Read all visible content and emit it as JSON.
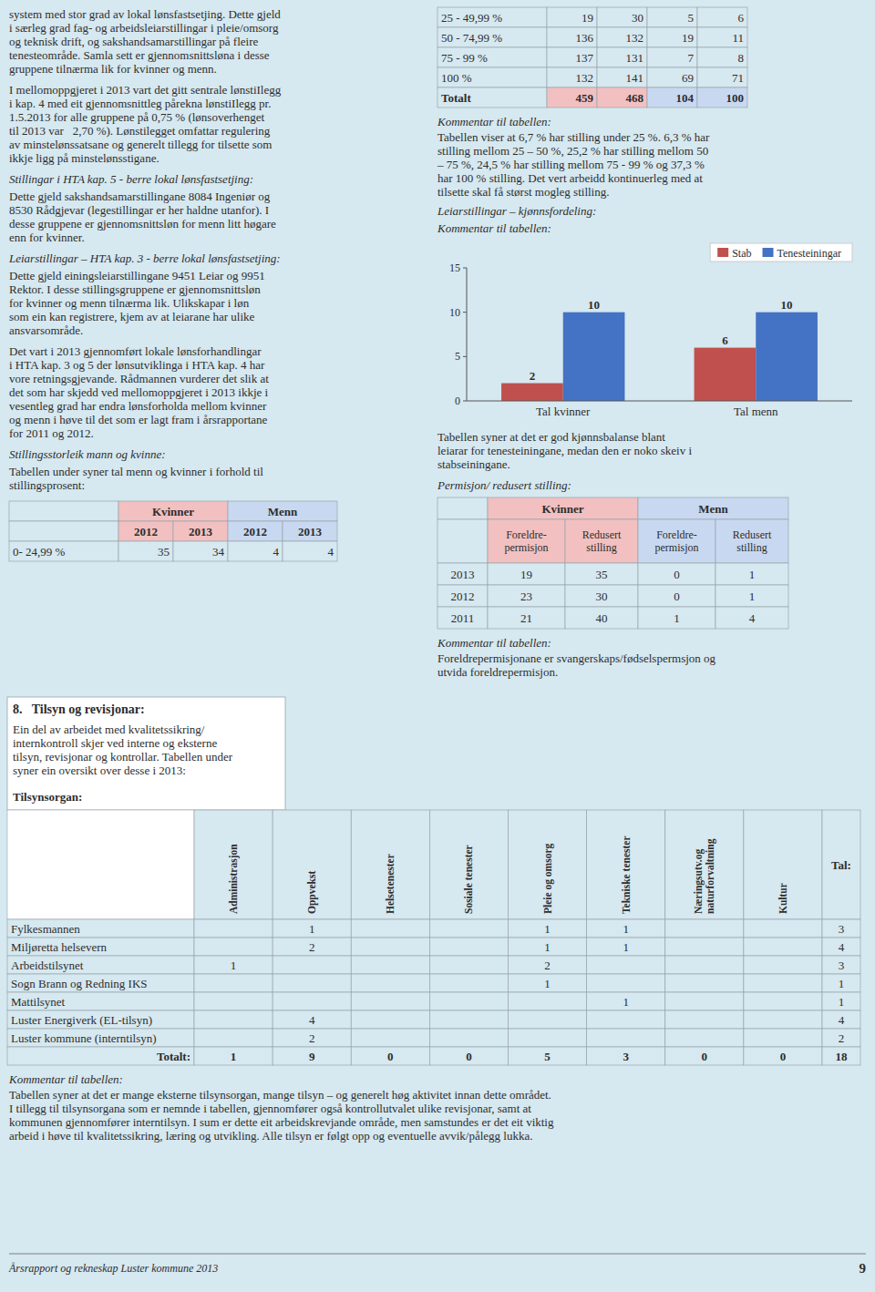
{
  "chart_data": {
    "type": "bar",
    "categories": [
      "Tal kvinner",
      "Tal menn"
    ],
    "series": [
      {
        "name": "Stab",
        "color": "#c0504d",
        "values": [
          2,
          6
        ]
      },
      {
        "name": "Tenesteiningar",
        "color": "#4472c4",
        "values": [
          10,
          10
        ]
      }
    ],
    "ylim": [
      0,
      15
    ],
    "yticks": [
      0,
      5,
      10,
      15
    ],
    "grid": false,
    "legend": "upper right",
    "data_labels": true
  },
  "page": {
    "background": "#d6e8f0",
    "group_colors": [
      "#f2c0c0",
      "#c8d8f0"
    ],
    "left_paragraphs": [
      {
        "text": "system med stor grad av lokal lønsfastsetjing. Dette gjeld\ni særleg grad fag- og arbeidsleiarstillingar i pleie/omsorg\nog teknisk drift, og sakshandsamarstillingar på fleire\ntenesteområde. Samla sett er gjennomsnittsløna i desse\ngruppene tilnærma lik for kvinner og menn.",
        "italic": false
      },
      {
        "text": "I mellomoppgjeret i 2013 vart det gitt sentrale lønstiIlegg\ni kap. 4 med eit gjennomsnittleg pårekna lønstiIlegg pr.\n1.5.2013 for alle gruppene på 0,75 % (lønsoverhenget\ntil 2013 var   2,70 %). Lønstilegget omfattar regulering\nav minstelønssatsane og generelt tillegg for tilsette som\nikkje ligg på minstelønsstigane.",
        "italic": false
      },
      {
        "text": "Stillingar i HTA kap. 5 - berre lokal lønsfastsetjing:",
        "italic": true
      },
      {
        "text": "Dette gjeld sakshandsamarstillingane 8084 Ingeniør og\n8530 Rådgjevar (legestillingar er her haldne utanfor). I\ndesse gruppene er gjennomsnittsløn for menn litt høgare\nenn for kvinner.",
        "italic": false
      },
      {
        "text": "Leiarstillingar – HTA kap. 3 - berre lokal lønsfastsetjing:",
        "italic": true
      },
      {
        "text": "Dette gjeld einingsleiarstillingane 9451 Leiar og 9951\nRektor. I desse stillingsgruppene er gjennomsnittsløn\nfor kvinner og menn tilnærma lik. Ulikskapar i løn\nsom ein kan registrere, kjem av at leiarane har ulike\nansvarsområde.",
        "italic": false
      },
      {
        "text": "Det vart i 2013 gjennomført lokale lønsforhandlingar\ni HTA kap. 3 og 5 der lønsutviklinga i HTA kap. 4 har\nvore retningsgjevande. Rådmannen vurderer det slik at\ndet som har skjedd ved mellomoppgjeret i 2013 ikkje i\nvesentleg grad har endra lønsforholda mellom kvinner\nog menn i høve til det som er lagt fram i årsrapportane\nfor 2011 og 2012.",
        "italic": false
      },
      {
        "text": "Stillingsstorleik mann og kvinne:",
        "italic": true
      },
      {
        "text": "Tabellen under syner tal menn og kvinner i forhold til\nstillingsprosent:",
        "italic": false
      }
    ],
    "headcount_table": {
      "group_headers": [
        "Kvinner",
        "Menn"
      ],
      "year_headers": [
        2012,
        2013,
        2012,
        2013
      ],
      "rows": [
        [
          "0- 24,99 %",
          35,
          34,
          4,
          4
        ]
      ]
    },
    "position_table": {
      "rows": [
        [
          "25 - 49,99 %",
          19,
          30,
          5,
          6
        ],
        [
          "50 - 74,99 %",
          136,
          132,
          19,
          11
        ],
        [
          "75 - 99 %",
          137,
          131,
          7,
          8
        ],
        [
          "100 %",
          132,
          141,
          69,
          71
        ]
      ],
      "total": [
        "Totalt",
        459,
        468,
        104,
        100
      ]
    },
    "comment1_title": "Kommentar til tabellen:",
    "comment1_body": "Tabellen viser at 6,7 % har stilling under 25 %. 6,3 % har\nstilling mellom 25 – 50 %, 25,2 % har stilling mellom 50\n– 75 %, 24,5 % har stilling mellom 75 - 99 % og 37,3 %\nhar 100 % stilling. Det vert arbeidd kontinuerleg med at\ntilsette skal få størst mogleg stilling.",
    "leiar_title": "Leiarstillingar – kjønnsfordeling:",
    "comment2_title": "Kommentar til tabellen:",
    "bar_comment": "Tabellen syner at det er god kjønnsbalanse blant\nleiarar for tenesteiningane, medan den er noko skeiv i\nstabseiningane.",
    "perm_title": "Permisjon/ redusert stilling:",
    "perm_table": {
      "group_headers": [
        "Kvinner",
        "Menn"
      ],
      "sub_headers": [
        "Foreldre-\npermisjon",
        "Redusert\nstilling",
        "Foreldre-\npermisjon",
        "Redusert\nstilling"
      ],
      "rows": [
        [
          2013,
          19,
          35,
          0,
          1
        ],
        [
          2012,
          23,
          30,
          0,
          1
        ],
        [
          2011,
          21,
          40,
          1,
          4
        ]
      ]
    },
    "comment3_title": "Kommentar til tabellen:",
    "comment3_body": "Foreldrepermisjonane er svangerskaps/fødselspermsjon og\nutvida foreldrepermisjon.",
    "s8": {
      "title": "8.   Tilsyn og revisjonar:",
      "intro": "Ein del av arbeidet med kvalitetssikring/\ninternkontroll skjer ved interne og eksterne\ntilsyn, revisjonar og kontrollar. Tabellen under\nsyner ein oversikt over desse i 2013:",
      "label": "Tilsynsorgan:",
      "col_headers": [
        "Administrasjon",
        "Oppvekst",
        "Helsetenester",
        "Sosiale tenester",
        "Pleie og omsorg",
        "Tekniske tenester",
        "Næringsutv.og\nnaturforvaltning",
        "Kultur",
        "Tal:"
      ],
      "rows": [
        [
          "Fylkesmannen",
          null,
          1,
          null,
          null,
          1,
          1,
          null,
          null,
          3
        ],
        [
          "Miljøretta helsevern",
          null,
          2,
          null,
          null,
          1,
          1,
          null,
          null,
          4
        ],
        [
          "Arbeidstilsynet",
          1,
          null,
          null,
          null,
          2,
          null,
          null,
          null,
          3
        ],
        [
          "Sogn Brann og Redning IKS",
          null,
          null,
          null,
          null,
          1,
          null,
          null,
          null,
          1
        ],
        [
          "Mattilsynet",
          null,
          null,
          null,
          null,
          null,
          1,
          null,
          null,
          1
        ],
        [
          "Luster Energiverk (EL-tilsyn)",
          null,
          4,
          null,
          null,
          null,
          null,
          null,
          null,
          4
        ],
        [
          "Luster kommune (interntilsyn)",
          null,
          2,
          null,
          null,
          null,
          null,
          null,
          null,
          2
        ]
      ],
      "total": [
        "Totalt:",
        1,
        9,
        0,
        0,
        5,
        3,
        0,
        0,
        18
      ],
      "comment_title": "Kommentar til tabellen:",
      "comment_body": "Tabellen syner at det er mange eksterne tilsynsorgan, mange tilsyn – og generelt høg aktivitet innan dette området.\nI tillegg til tilsynsorgana som er nemnde i tabellen, gjennomfører også kontrollutvalet ulike revisjonar, samt at\nkommunen gjennomfører interntilsyn. I sum er dette eit arbeidskrevjande område, men samstundes er det eit viktig\narbeid i høve til kvalitetssikring, læring og utvikling. Alle tilsyn er følgt opp og eventuelle avvik/pålegg lukka."
    },
    "footer": "Årsrapport og rekneskap Luster kommune 2013",
    "page_num": 9
  }
}
